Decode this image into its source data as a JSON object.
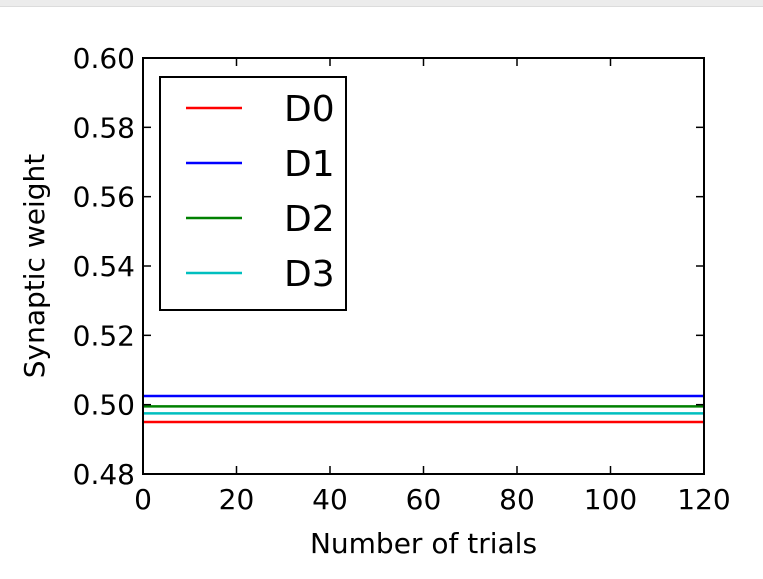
{
  "chart_data": {
    "type": "line",
    "title": "",
    "xlabel": "Number of trials",
    "ylabel": "Synaptic weight",
    "xlim": [
      0,
      120
    ],
    "ylim": [
      0.48,
      0.6
    ],
    "xticks": [
      0,
      20,
      40,
      60,
      80,
      100,
      120
    ],
    "xtick_labels": [
      "0",
      "20",
      "40",
      "60",
      "80",
      "100",
      "120"
    ],
    "yticks": [
      0.48,
      0.5,
      0.52,
      0.54,
      0.56,
      0.58,
      0.6
    ],
    "ytick_labels": [
      "0.48",
      "0.50",
      "0.52",
      "0.54",
      "0.56",
      "0.58",
      "0.60"
    ],
    "grid": false,
    "legend_position": "top-left",
    "series": [
      {
        "name": "D0",
        "color": "#ff0000",
        "x": [
          0,
          120
        ],
        "y": [
          0.495,
          0.495
        ]
      },
      {
        "name": "D1",
        "color": "#0000ff",
        "x": [
          0,
          120
        ],
        "y": [
          0.5025,
          0.5025
        ]
      },
      {
        "name": "D2",
        "color": "#008000",
        "x": [
          0,
          120
        ],
        "y": [
          0.4995,
          0.4995
        ]
      },
      {
        "name": "D3",
        "color": "#00bfbf",
        "x": [
          0,
          120
        ],
        "y": [
          0.4975,
          0.4975
        ]
      }
    ]
  }
}
